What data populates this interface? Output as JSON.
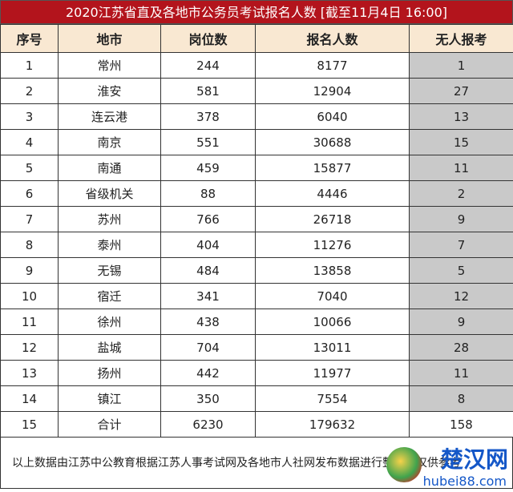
{
  "title": "2020江苏省直及各地市公务员考试报名人数 [截至11月4日 16:00]",
  "headers": [
    "序号",
    "地市",
    "岗位数",
    "报名人数",
    "无人报考"
  ],
  "rows": [
    [
      "1",
      "常州",
      "244",
      "8177",
      "1"
    ],
    [
      "2",
      "淮安",
      "581",
      "12904",
      "27"
    ],
    [
      "3",
      "连云港",
      "378",
      "6040",
      "13"
    ],
    [
      "4",
      "南京",
      "551",
      "30688",
      "15"
    ],
    [
      "5",
      "南通",
      "459",
      "15877",
      "11"
    ],
    [
      "6",
      "省级机关",
      "88",
      "4446",
      "2"
    ],
    [
      "7",
      "苏州",
      "766",
      "26718",
      "9"
    ],
    [
      "8",
      "泰州",
      "404",
      "11276",
      "7"
    ],
    [
      "9",
      "无锡",
      "484",
      "13858",
      "5"
    ],
    [
      "10",
      "宿迁",
      "341",
      "7040",
      "12"
    ],
    [
      "11",
      "徐州",
      "438",
      "10066",
      "9"
    ],
    [
      "12",
      "盐城",
      "704",
      "13011",
      "28"
    ],
    [
      "13",
      "扬州",
      "442",
      "11977",
      "11"
    ],
    [
      "14",
      "镇江",
      "350",
      "7554",
      "8"
    ],
    [
      "15",
      "合计",
      "6230",
      "179632",
      "158"
    ]
  ],
  "footer": "以上数据由江苏中公教育根据江苏人事考试网及各地市人社网发布数据进行整理，仅供参考",
  "watermark_logo": {
    "name": "楚汉网",
    "url_text": "hubei88.com"
  },
  "colors": {
    "title_bg": "#b3141c",
    "header_bg": "#f9e8d2",
    "highlight_col": "#c9c9c9"
  }
}
